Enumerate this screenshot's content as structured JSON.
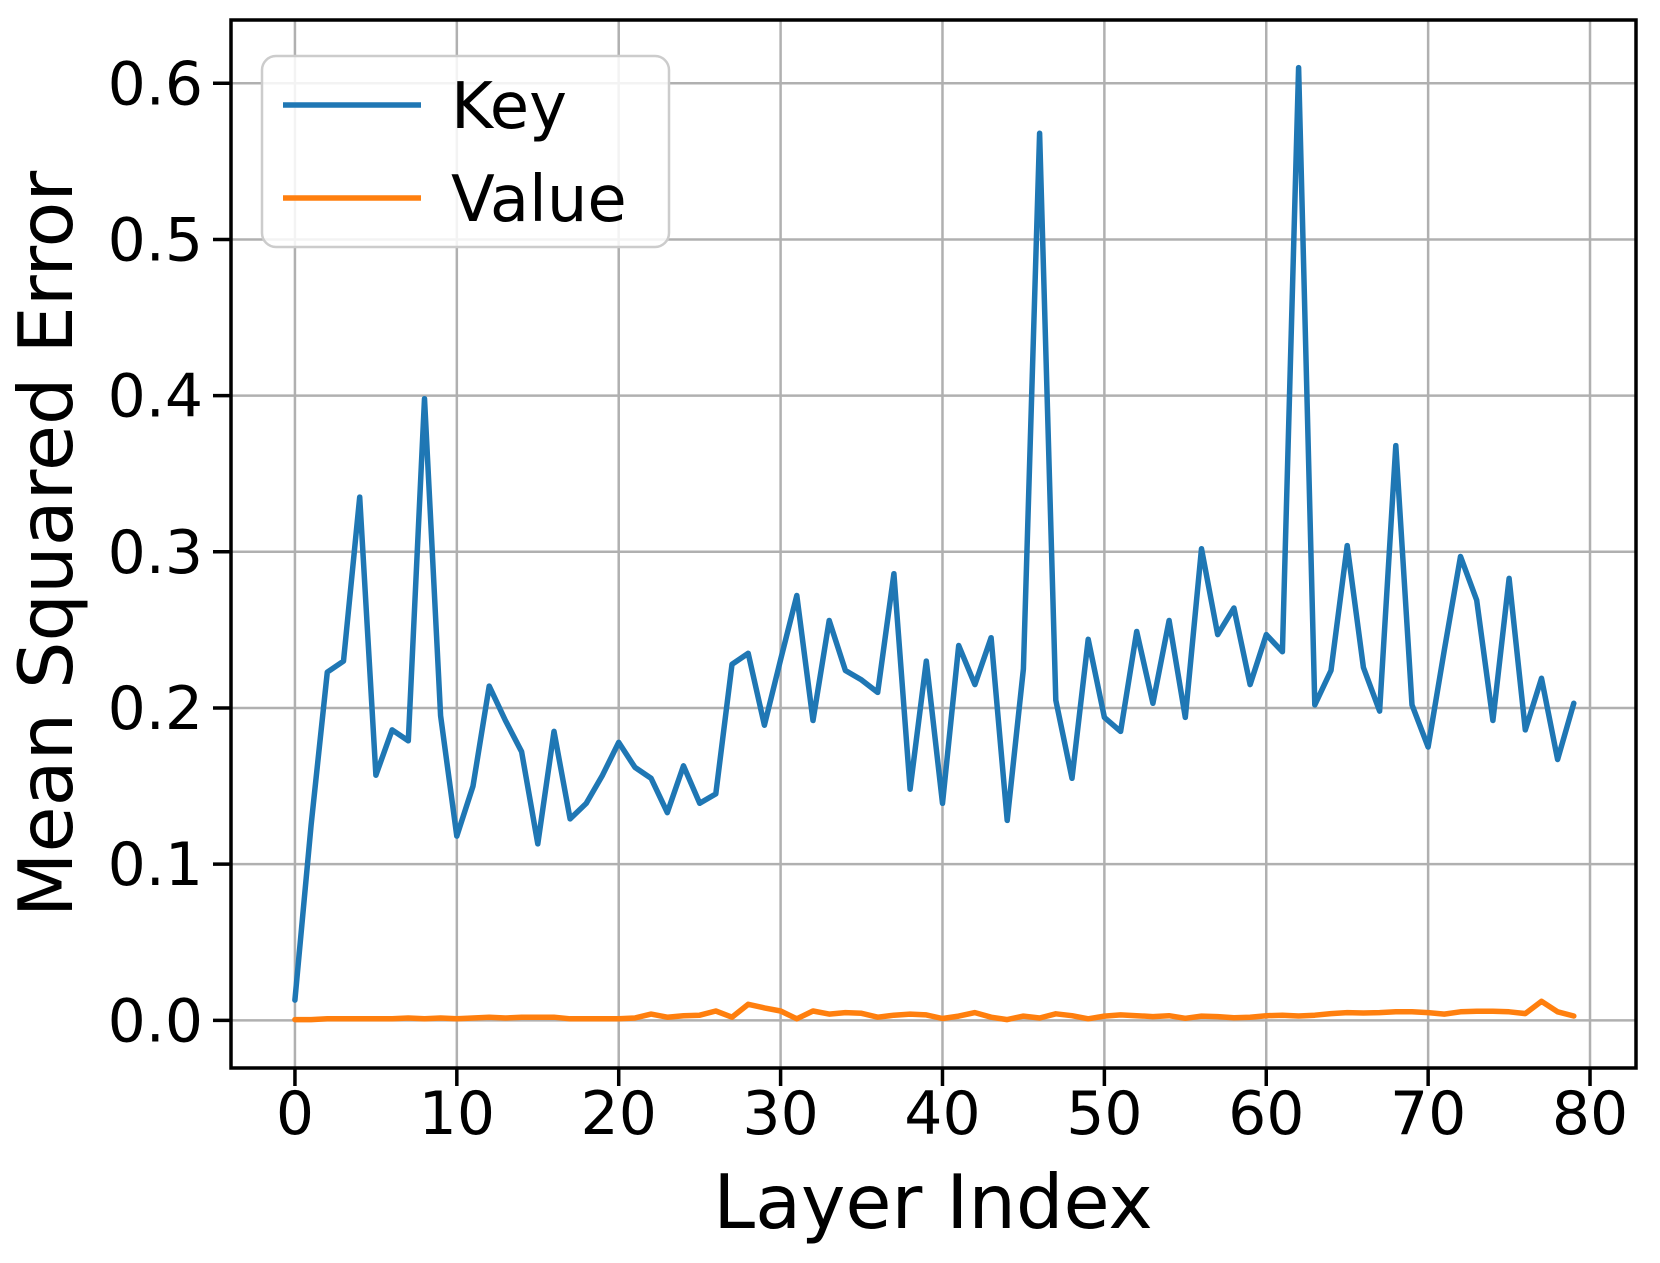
{
  "chart_data": {
    "type": "line",
    "title": "",
    "xlabel": "Layer Index",
    "ylabel": "Mean Squared Error",
    "grid": true,
    "legend_position": "upper left",
    "xlim": [
      -3.95,
      82.84
    ],
    "ylim": [
      -0.0305,
      0.6405
    ],
    "x_ticks": [
      0,
      10,
      20,
      30,
      40,
      50,
      60,
      70,
      80
    ],
    "x_tick_labels": [
      "0",
      "10",
      "20",
      "30",
      "40",
      "50",
      "60",
      "70",
      "80"
    ],
    "y_ticks": [
      0.0,
      0.1,
      0.2,
      0.3,
      0.4,
      0.5,
      0.6
    ],
    "y_tick_labels": [
      "0.0",
      "0.1",
      "0.2",
      "0.3",
      "0.4",
      "0.5",
      "0.6"
    ],
    "x": [
      0,
      1,
      2,
      3,
      4,
      5,
      6,
      7,
      8,
      9,
      10,
      11,
      12,
      13,
      14,
      15,
      16,
      17,
      18,
      19,
      20,
      21,
      22,
      23,
      24,
      25,
      26,
      27,
      28,
      29,
      30,
      31,
      32,
      33,
      34,
      35,
      36,
      37,
      38,
      39,
      40,
      41,
      42,
      43,
      44,
      45,
      46,
      47,
      48,
      49,
      50,
      51,
      52,
      53,
      54,
      55,
      56,
      57,
      58,
      59,
      60,
      61,
      62,
      63,
      64,
      65,
      66,
      67,
      68,
      69,
      70,
      71,
      72,
      73,
      74,
      75,
      76,
      77,
      78,
      79
    ],
    "series": [
      {
        "name": "Key",
        "color": "#1f77b4",
        "values": [
          0.013,
          0.125,
          0.223,
          0.23,
          0.335,
          0.157,
          0.186,
          0.179,
          0.398,
          0.195,
          0.118,
          0.15,
          0.214,
          0.192,
          0.172,
          0.113,
          0.185,
          0.129,
          0.139,
          0.157,
          0.178,
          0.162,
          0.155,
          0.133,
          0.163,
          0.139,
          0.145,
          0.228,
          0.235,
          0.189,
          0.231,
          0.272,
          0.192,
          0.256,
          0.224,
          0.218,
          0.21,
          0.286,
          0.148,
          0.23,
          0.139,
          0.24,
          0.215,
          0.245,
          0.128,
          0.225,
          0.568,
          0.205,
          0.155,
          0.244,
          0.194,
          0.185,
          0.249,
          0.203,
          0.256,
          0.194,
          0.302,
          0.247,
          0.264,
          0.215,
          0.247,
          0.236,
          0.61,
          0.202,
          0.224,
          0.304,
          0.226,
          0.198,
          0.368,
          0.202,
          0.175,
          0.237,
          0.297,
          0.269,
          0.192,
          0.283,
          0.186,
          0.219,
          0.167,
          0.203
        ]
      },
      {
        "name": "Value",
        "color": "#ff7f0e",
        "values": [
          0.0005,
          0.0005,
          0.001,
          0.001,
          0.001,
          0.001,
          0.001,
          0.0015,
          0.001,
          0.0015,
          0.001,
          0.0015,
          0.002,
          0.0015,
          0.002,
          0.002,
          0.002,
          0.001,
          0.001,
          0.001,
          0.001,
          0.0015,
          0.004,
          0.002,
          0.003,
          0.0033,
          0.006,
          0.002,
          0.0103,
          0.008,
          0.006,
          0.001,
          0.006,
          0.004,
          0.005,
          0.0045,
          0.002,
          0.0033,
          0.004,
          0.0035,
          0.0012,
          0.0027,
          0.005,
          0.002,
          0.0005,
          0.0027,
          0.0015,
          0.0042,
          0.003,
          0.001,
          0.0027,
          0.0035,
          0.003,
          0.0024,
          0.003,
          0.0013,
          0.0027,
          0.0024,
          0.0017,
          0.002,
          0.003,
          0.0033,
          0.0028,
          0.0033,
          0.0043,
          0.005,
          0.0047,
          0.005,
          0.0055,
          0.0055,
          0.005,
          0.004,
          0.0055,
          0.0058,
          0.0058,
          0.0055,
          0.0043,
          0.0122,
          0.0055,
          0.0028
        ]
      }
    ]
  },
  "style": {
    "grid_color": "#b0b0b0",
    "frame_color": "#000000",
    "legend_border_color": "#cccccc",
    "legend_bg": "rgba(255,255,255,0.85)"
  }
}
